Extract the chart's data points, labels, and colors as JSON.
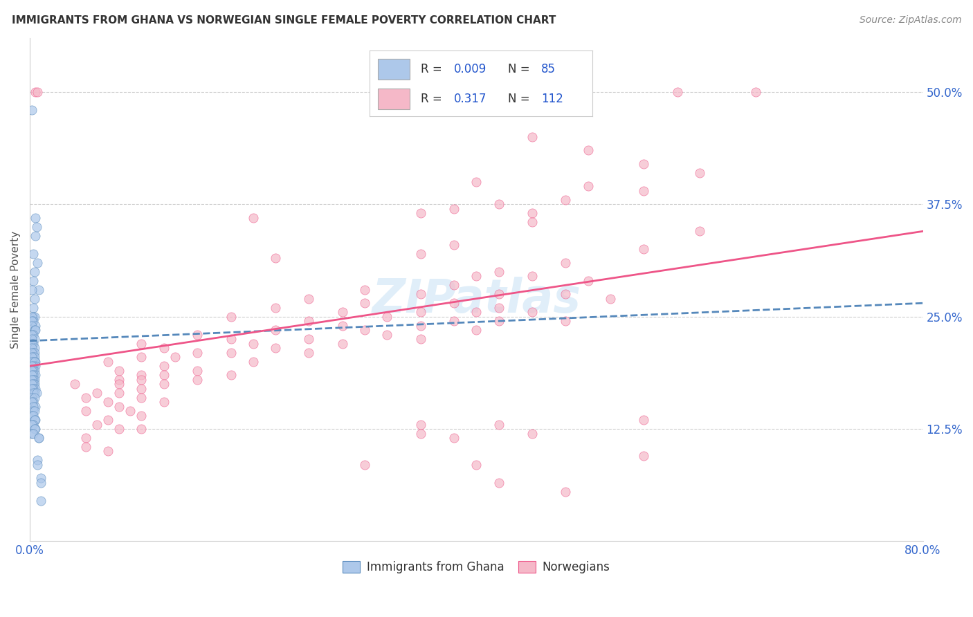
{
  "title": "IMMIGRANTS FROM GHANA VS NORWEGIAN SINGLE FEMALE POVERTY CORRELATION CHART",
  "source": "Source: ZipAtlas.com",
  "ylabel": "Single Female Poverty",
  "yticks": [
    "12.5%",
    "25.0%",
    "37.5%",
    "50.0%"
  ],
  "ytick_vals": [
    0.125,
    0.25,
    0.375,
    0.5
  ],
  "xlim": [
    0.0,
    0.8
  ],
  "ylim": [
    0.0,
    0.56
  ],
  "watermark": "ZIPatlas",
  "legend": {
    "ghana_R": "0.009",
    "ghana_N": "85",
    "norway_R": "0.317",
    "norway_N": "112",
    "ghana_color": "#adc8ea",
    "norway_color": "#f5b8c8"
  },
  "ghana_scatter": [
    [
      0.002,
      0.48
    ],
    [
      0.005,
      0.36
    ],
    [
      0.005,
      0.34
    ],
    [
      0.006,
      0.35
    ],
    [
      0.003,
      0.32
    ],
    [
      0.007,
      0.31
    ],
    [
      0.004,
      0.3
    ],
    [
      0.003,
      0.29
    ],
    [
      0.008,
      0.28
    ],
    [
      0.002,
      0.28
    ],
    [
      0.004,
      0.27
    ],
    [
      0.003,
      0.26
    ],
    [
      0.003,
      0.25
    ],
    [
      0.004,
      0.25
    ],
    [
      0.002,
      0.25
    ],
    [
      0.003,
      0.245
    ],
    [
      0.002,
      0.245
    ],
    [
      0.005,
      0.24
    ],
    [
      0.002,
      0.24
    ],
    [
      0.004,
      0.235
    ],
    [
      0.005,
      0.235
    ],
    [
      0.003,
      0.23
    ],
    [
      0.002,
      0.23
    ],
    [
      0.004,
      0.225
    ],
    [
      0.002,
      0.225
    ],
    [
      0.003,
      0.22
    ],
    [
      0.002,
      0.22
    ],
    [
      0.004,
      0.215
    ],
    [
      0.002,
      0.215
    ],
    [
      0.003,
      0.21
    ],
    [
      0.004,
      0.21
    ],
    [
      0.002,
      0.21
    ],
    [
      0.003,
      0.205
    ],
    [
      0.004,
      0.205
    ],
    [
      0.002,
      0.205
    ],
    [
      0.005,
      0.2
    ],
    [
      0.003,
      0.2
    ],
    [
      0.002,
      0.2
    ],
    [
      0.004,
      0.2
    ],
    [
      0.005,
      0.195
    ],
    [
      0.003,
      0.195
    ],
    [
      0.002,
      0.195
    ],
    [
      0.004,
      0.19
    ],
    [
      0.003,
      0.19
    ],
    [
      0.002,
      0.19
    ],
    [
      0.005,
      0.185
    ],
    [
      0.003,
      0.185
    ],
    [
      0.002,
      0.185
    ],
    [
      0.004,
      0.18
    ],
    [
      0.003,
      0.18
    ],
    [
      0.002,
      0.18
    ],
    [
      0.004,
      0.175
    ],
    [
      0.003,
      0.175
    ],
    [
      0.002,
      0.175
    ],
    [
      0.005,
      0.17
    ],
    [
      0.003,
      0.17
    ],
    [
      0.002,
      0.17
    ],
    [
      0.004,
      0.165
    ],
    [
      0.003,
      0.165
    ],
    [
      0.006,
      0.165
    ],
    [
      0.002,
      0.16
    ],
    [
      0.004,
      0.16
    ],
    [
      0.003,
      0.155
    ],
    [
      0.002,
      0.155
    ],
    [
      0.005,
      0.15
    ],
    [
      0.003,
      0.15
    ],
    [
      0.003,
      0.145
    ],
    [
      0.004,
      0.145
    ],
    [
      0.002,
      0.14
    ],
    [
      0.003,
      0.14
    ],
    [
      0.005,
      0.135
    ],
    [
      0.004,
      0.135
    ],
    [
      0.003,
      0.13
    ],
    [
      0.002,
      0.13
    ],
    [
      0.005,
      0.125
    ],
    [
      0.004,
      0.125
    ],
    [
      0.002,
      0.12
    ],
    [
      0.003,
      0.12
    ],
    [
      0.008,
      0.115
    ],
    [
      0.008,
      0.115
    ],
    [
      0.007,
      0.09
    ],
    [
      0.007,
      0.085
    ],
    [
      0.01,
      0.07
    ],
    [
      0.01,
      0.065
    ],
    [
      0.01,
      0.045
    ]
  ],
  "norway_scatter": [
    [
      0.005,
      0.5
    ],
    [
      0.007,
      0.5
    ],
    [
      0.58,
      0.5
    ],
    [
      0.65,
      0.5
    ],
    [
      0.45,
      0.45
    ],
    [
      0.5,
      0.435
    ],
    [
      0.55,
      0.42
    ],
    [
      0.6,
      0.41
    ],
    [
      0.4,
      0.4
    ],
    [
      0.5,
      0.395
    ],
    [
      0.55,
      0.39
    ],
    [
      0.48,
      0.38
    ],
    [
      0.42,
      0.375
    ],
    [
      0.38,
      0.37
    ],
    [
      0.35,
      0.365
    ],
    [
      0.45,
      0.365
    ],
    [
      0.2,
      0.36
    ],
    [
      0.45,
      0.355
    ],
    [
      0.6,
      0.345
    ],
    [
      0.38,
      0.33
    ],
    [
      0.55,
      0.325
    ],
    [
      0.35,
      0.32
    ],
    [
      0.22,
      0.315
    ],
    [
      0.48,
      0.31
    ],
    [
      0.42,
      0.3
    ],
    [
      0.4,
      0.295
    ],
    [
      0.45,
      0.295
    ],
    [
      0.5,
      0.29
    ],
    [
      0.38,
      0.285
    ],
    [
      0.3,
      0.28
    ],
    [
      0.35,
      0.275
    ],
    [
      0.42,
      0.275
    ],
    [
      0.48,
      0.275
    ],
    [
      0.25,
      0.27
    ],
    [
      0.52,
      0.27
    ],
    [
      0.38,
      0.265
    ],
    [
      0.3,
      0.265
    ],
    [
      0.22,
      0.26
    ],
    [
      0.42,
      0.26
    ],
    [
      0.28,
      0.255
    ],
    [
      0.35,
      0.255
    ],
    [
      0.4,
      0.255
    ],
    [
      0.45,
      0.255
    ],
    [
      0.18,
      0.25
    ],
    [
      0.32,
      0.25
    ],
    [
      0.38,
      0.245
    ],
    [
      0.25,
      0.245
    ],
    [
      0.42,
      0.245
    ],
    [
      0.48,
      0.245
    ],
    [
      0.28,
      0.24
    ],
    [
      0.35,
      0.24
    ],
    [
      0.3,
      0.235
    ],
    [
      0.22,
      0.235
    ],
    [
      0.4,
      0.235
    ],
    [
      0.15,
      0.23
    ],
    [
      0.32,
      0.23
    ],
    [
      0.18,
      0.225
    ],
    [
      0.25,
      0.225
    ],
    [
      0.35,
      0.225
    ],
    [
      0.1,
      0.22
    ],
    [
      0.2,
      0.22
    ],
    [
      0.28,
      0.22
    ],
    [
      0.12,
      0.215
    ],
    [
      0.22,
      0.215
    ],
    [
      0.15,
      0.21
    ],
    [
      0.18,
      0.21
    ],
    [
      0.25,
      0.21
    ],
    [
      0.1,
      0.205
    ],
    [
      0.13,
      0.205
    ],
    [
      0.2,
      0.2
    ],
    [
      0.12,
      0.195
    ],
    [
      0.15,
      0.19
    ],
    [
      0.1,
      0.185
    ],
    [
      0.12,
      0.185
    ],
    [
      0.18,
      0.185
    ],
    [
      0.08,
      0.18
    ],
    [
      0.1,
      0.18
    ],
    [
      0.15,
      0.18
    ],
    [
      0.08,
      0.175
    ],
    [
      0.12,
      0.175
    ],
    [
      0.1,
      0.17
    ],
    [
      0.08,
      0.165
    ],
    [
      0.05,
      0.16
    ],
    [
      0.1,
      0.16
    ],
    [
      0.12,
      0.155
    ],
    [
      0.08,
      0.15
    ],
    [
      0.05,
      0.145
    ],
    [
      0.1,
      0.14
    ],
    [
      0.07,
      0.135
    ],
    [
      0.06,
      0.13
    ],
    [
      0.35,
      0.13
    ],
    [
      0.42,
      0.13
    ],
    [
      0.08,
      0.125
    ],
    [
      0.1,
      0.125
    ],
    [
      0.35,
      0.12
    ],
    [
      0.45,
      0.12
    ],
    [
      0.05,
      0.115
    ],
    [
      0.38,
      0.115
    ],
    [
      0.05,
      0.105
    ],
    [
      0.07,
      0.1
    ],
    [
      0.3,
      0.085
    ],
    [
      0.4,
      0.085
    ],
    [
      0.55,
      0.095
    ],
    [
      0.42,
      0.065
    ],
    [
      0.48,
      0.055
    ],
    [
      0.07,
      0.2
    ],
    [
      0.08,
      0.19
    ],
    [
      0.04,
      0.175
    ],
    [
      0.06,
      0.165
    ],
    [
      0.07,
      0.155
    ],
    [
      0.09,
      0.145
    ],
    [
      0.55,
      0.135
    ]
  ],
  "ghana_trendline": [
    [
      0.0,
      0.223
    ],
    [
      0.8,
      0.265
    ]
  ],
  "norway_trendline": [
    [
      0.0,
      0.195
    ],
    [
      0.8,
      0.345
    ]
  ],
  "ghana_line_color": "#5588bb",
  "norway_line_color": "#ee5588",
  "ghana_marker_color": "#adc8ea",
  "ghana_marker_edge": "#5588bb",
  "norway_marker_color": "#f5b8c8",
  "norway_marker_edge": "#ee5588",
  "background_color": "#ffffff",
  "grid_color": "#cccccc"
}
